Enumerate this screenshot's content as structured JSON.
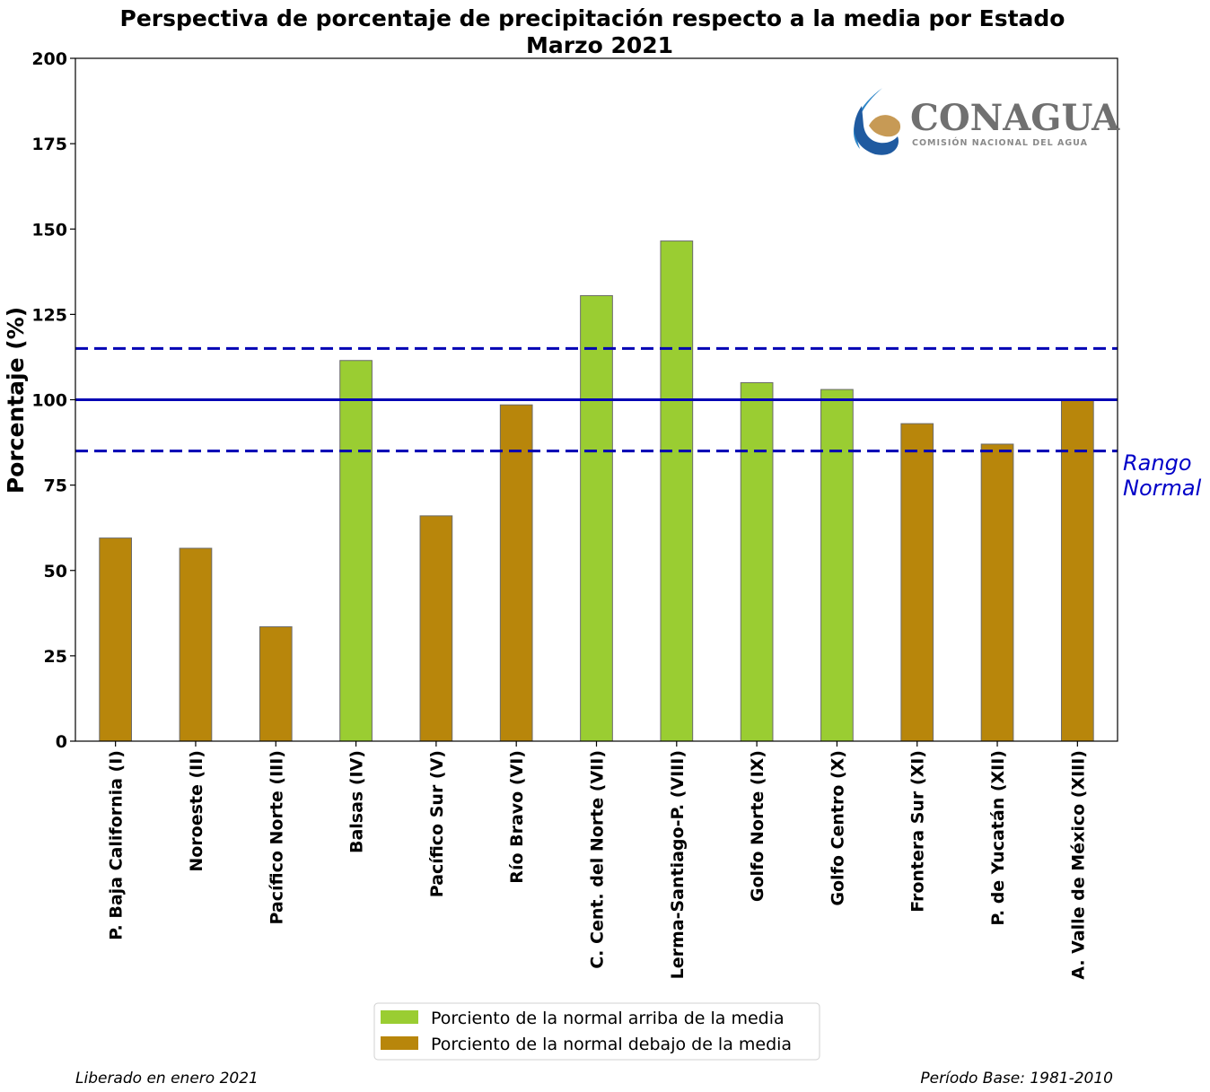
{
  "chart_data": {
    "type": "bar",
    "title": "Perspectiva de porcentaje de precipitación respecto a la media por Estado",
    "subtitle": "Marzo 2021",
    "ylabel": "Porcentaje (%)",
    "xlabel": "",
    "ylim": [
      0,
      200
    ],
    "yticks": [
      0,
      25,
      50,
      75,
      100,
      125,
      150,
      175,
      200
    ],
    "categories": [
      "P. Baja California (I)",
      "Noroeste (II)",
      "Pacífico Norte (III)",
      "Balsas (IV)",
      "Pacífico Sur (V)",
      "Río Bravo (VI)",
      "C. Cent. del Norte (VII)",
      "Lerma-Santiago-P. (VIII)",
      "Golfo Norte (IX)",
      "Golfo Centro (X)",
      "Frontera Sur (XI)",
      "P. de Yucatán (XII)",
      "A. Valle de México (XIII)"
    ],
    "values": [
      59.5,
      56.5,
      33.5,
      111.5,
      66,
      98.5,
      130.5,
      146.5,
      105,
      103,
      93,
      87,
      100
    ],
    "bar_classes": [
      "below",
      "below",
      "below",
      "above",
      "below",
      "below",
      "above",
      "above",
      "above",
      "above",
      "below",
      "below",
      "below"
    ],
    "reference_lines": {
      "media": 100,
      "rango_normal": [
        85,
        115
      ],
      "color": "#0000b4",
      "label": "Rango\nNormal"
    },
    "legend": {
      "placement": "bottom-center",
      "entries": [
        {
          "key": "above",
          "label": "Porciento de la normal arriba de la media",
          "color": "#9acd32"
        },
        {
          "key": "below",
          "label": "Porciento de la normal debajo de la media",
          "color": "#b8860b"
        }
      ]
    },
    "grid": false
  },
  "footer": {
    "left": "Liberado en enero 2021",
    "right": "Período Base: 1981-2010"
  },
  "logo": {
    "name": "CONAGUA",
    "tagline": "COMISIÓN NACIONAL DEL AGUA"
  }
}
